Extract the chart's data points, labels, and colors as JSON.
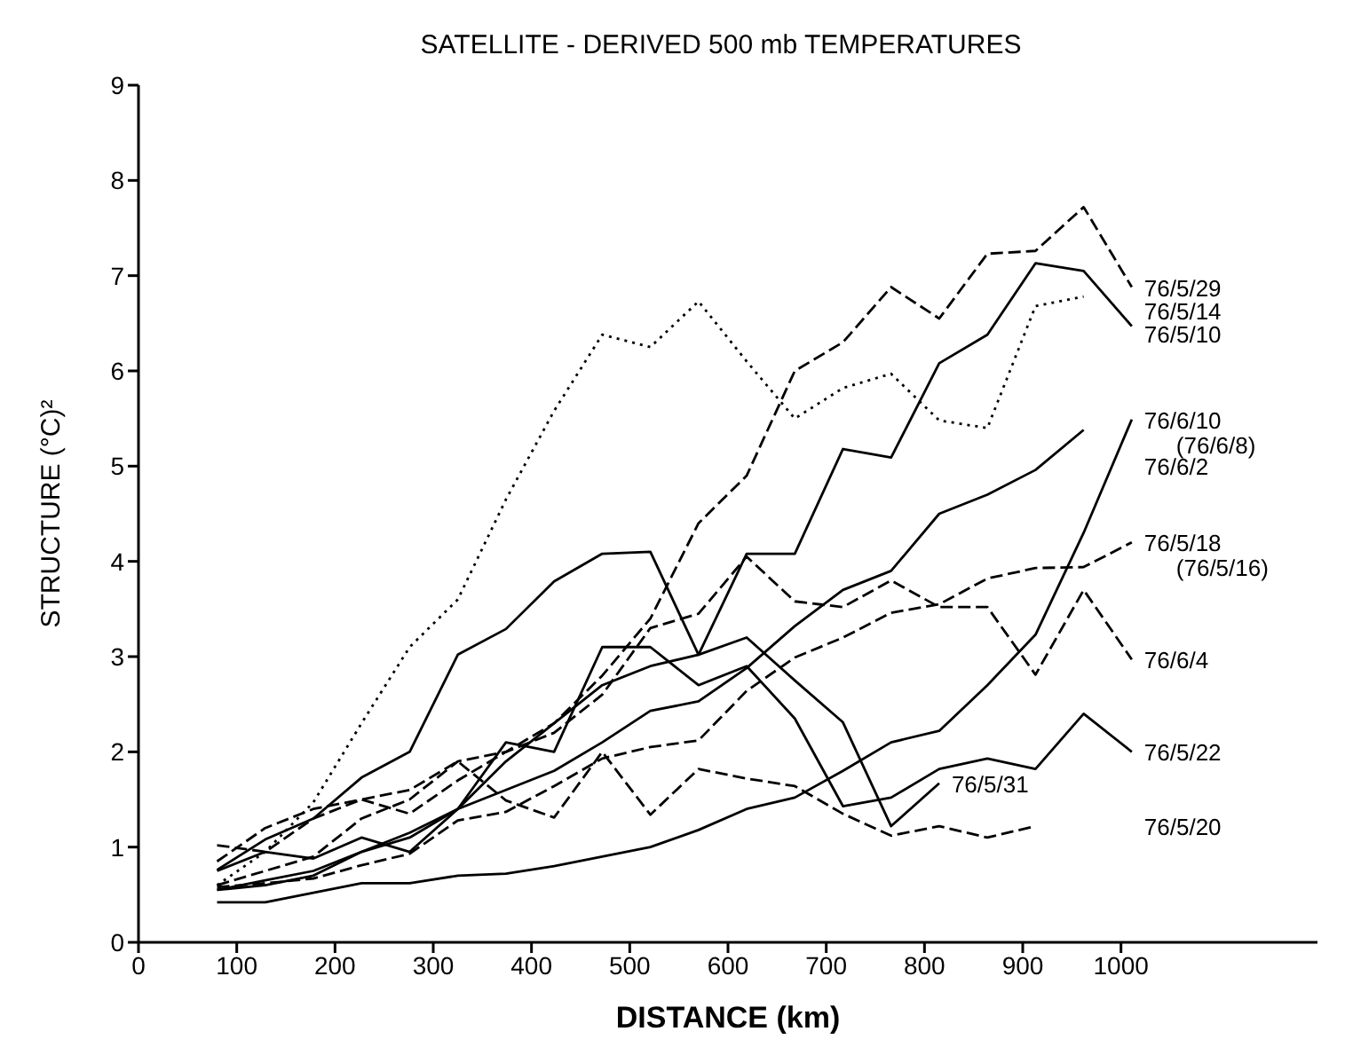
{
  "chart_data": {
    "type": "line",
    "title": "SATELLITE - DERIVED 500 mb TEMPERATURES",
    "xlabel": "DISTANCE (km)",
    "ylabel": "STRUCTURE (°C)²",
    "x": [
      80,
      129,
      178,
      227,
      276,
      325,
      374,
      423,
      472,
      521,
      570,
      619,
      668,
      717,
      766,
      815,
      864,
      913,
      962,
      1011
    ],
    "xlim": [
      0,
      1200
    ],
    "xticks": [
      0,
      100,
      200,
      300,
      400,
      500,
      600,
      700,
      800,
      900,
      1000
    ],
    "ylim": [
      0,
      9
    ],
    "yticks": [
      0,
      1,
      2,
      3,
      4,
      5,
      6,
      7,
      8,
      9
    ],
    "grid": false,
    "legend": false,
    "marker": "none",
    "series": [
      {
        "name": "76/5/29",
        "color": "#000000",
        "line_style": "dashed",
        "values": [
          0.6,
          0.75,
          0.9,
          1.3,
          1.5,
          1.9,
          2.0,
          2.3,
          2.8,
          3.4,
          4.4,
          4.9,
          6.0,
          6.3,
          6.88,
          6.55,
          7.23,
          7.26,
          7.72,
          6.88
        ]
      },
      {
        "name": "76/5/10",
        "color": "#000000",
        "line_style": "solid",
        "values": [
          0.55,
          0.65,
          0.75,
          0.95,
          1.1,
          1.4,
          1.9,
          2.3,
          2.7,
          2.9,
          3.02,
          4.08,
          4.08,
          5.18,
          5.09,
          6.08,
          6.38,
          7.13,
          7.05,
          6.47
        ]
      },
      {
        "name": "76/5/14",
        "color": "#000000",
        "line_style": "dotted",
        "values": [
          0.6,
          0.95,
          1.47,
          2.3,
          3.1,
          3.6,
          4.65,
          5.58,
          6.38,
          6.25,
          6.73,
          6.1,
          5.5,
          5.82,
          5.97,
          5.48,
          5.4,
          6.68,
          6.78,
          null
        ]
      },
      {
        "name": "76/6/10 (76/6/8)",
        "color": "#000000",
        "line_style": "solid",
        "values": [
          0.42,
          0.42,
          0.52,
          0.62,
          0.62,
          0.7,
          0.72,
          0.8,
          0.9,
          1.0,
          1.18,
          1.4,
          1.52,
          1.8,
          2.1,
          2.22,
          2.7,
          3.23,
          4.3,
          5.49
        ]
      },
      {
        "name": "76/6/2",
        "color": "#000000",
        "line_style": "solid",
        "values": [
          0.55,
          0.6,
          0.7,
          0.95,
          1.15,
          1.4,
          1.6,
          1.8,
          2.1,
          2.43,
          2.53,
          2.88,
          3.32,
          3.7,
          3.9,
          4.5,
          4.7,
          4.96,
          5.38,
          null
        ]
      },
      {
        "name": "76/5/18 (76/5/16)",
        "color": "#000000",
        "line_style": "dashed",
        "values": [
          0.58,
          0.62,
          0.67,
          0.81,
          0.93,
          1.28,
          1.37,
          1.64,
          1.93,
          2.05,
          2.12,
          2.64,
          2.99,
          3.2,
          3.46,
          3.55,
          3.82,
          3.93,
          3.94,
          4.2
        ]
      },
      {
        "name": "76/6/4",
        "color": "#000000",
        "line_style": "dashed",
        "values": [
          0.85,
          1.2,
          1.4,
          1.5,
          1.35,
          1.7,
          2.0,
          2.2,
          2.6,
          3.3,
          3.45,
          4.05,
          3.58,
          3.52,
          3.8,
          3.52,
          3.52,
          2.81,
          3.7,
          2.97
        ]
      },
      {
        "name": "76/5/22",
        "color": "#000000",
        "line_style": "solid",
        "values": [
          0.75,
          0.95,
          0.88,
          1.1,
          0.95,
          1.4,
          2.1,
          2.0,
          3.1,
          3.1,
          2.7,
          2.9,
          2.35,
          1.43,
          1.52,
          1.82,
          1.93,
          1.82,
          2.4,
          2.0
        ]
      },
      {
        "name": "76/5/31",
        "color": "#000000",
        "line_style": "solid",
        "values": [
          0.76,
          1.08,
          1.3,
          1.73,
          2.0,
          3.02,
          3.29,
          3.79,
          4.08,
          4.1,
          3.02,
          3.2,
          2.75,
          2.31,
          1.22,
          1.67,
          null,
          null,
          null,
          null
        ]
      },
      {
        "name": "76/5/20",
        "color": "#000000",
        "line_style": "dashed",
        "values": [
          1.02,
          0.95,
          1.3,
          1.5,
          1.6,
          1.9,
          1.49,
          1.31,
          2.0,
          1.34,
          1.82,
          1.72,
          1.64,
          1.35,
          1.12,
          1.22,
          1.1,
          1.22,
          null,
          null
        ]
      }
    ]
  }
}
